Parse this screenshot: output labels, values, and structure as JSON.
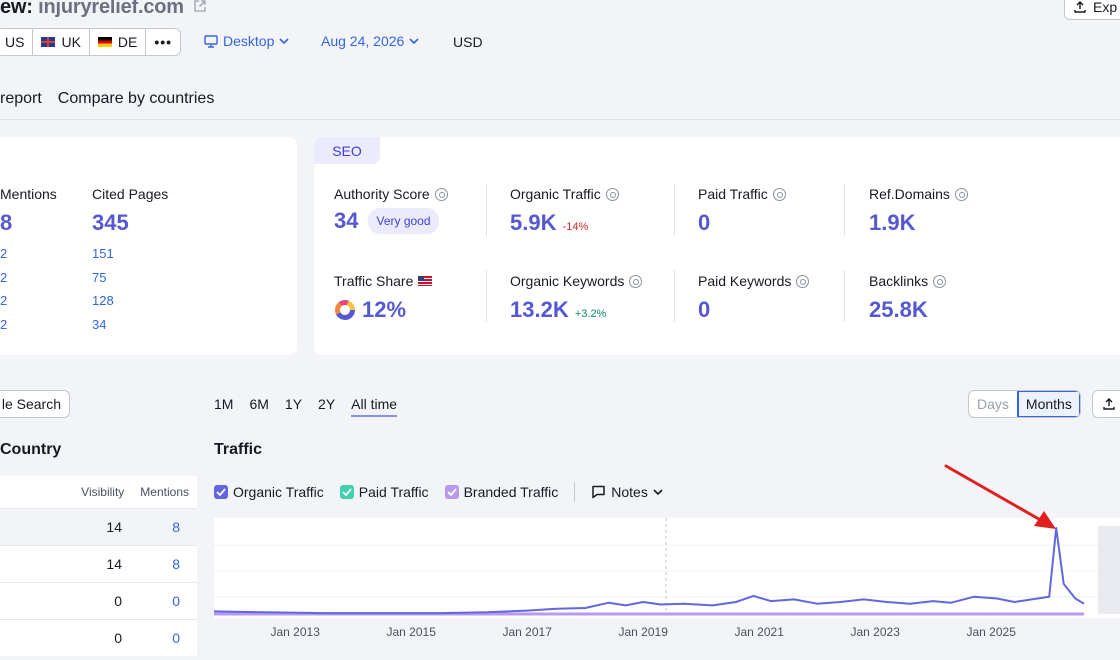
{
  "header": {
    "title_prefix": "ew:",
    "domain": "injuryrelief.com",
    "export_label": "Exp"
  },
  "filters": {
    "countries": [
      {
        "code": "US"
      },
      {
        "code": "UK"
      },
      {
        "code": "DE"
      }
    ],
    "more_label": "•••",
    "device": "Desktop",
    "date": "Aug 24, 2026",
    "currency": "USD"
  },
  "tabs": {
    "report": "report",
    "compare": "Compare by countries"
  },
  "ai_card": {
    "mentions_label": "Mentions",
    "mentions_value": "8",
    "cited_label": "Cited Pages",
    "cited_value": "345",
    "rows": [
      {
        "left": "2",
        "right": "151"
      },
      {
        "left": "2",
        "right": "75"
      },
      {
        "left": "2",
        "right": "128"
      },
      {
        "left": "2",
        "right": "34"
      }
    ]
  },
  "seo": {
    "tag": "SEO",
    "authority_label": "Authority Score",
    "authority_value": "34",
    "authority_badge": "Very good",
    "organic_traffic_label": "Organic Traffic",
    "organic_traffic_value": "5.9K",
    "organic_traffic_delta": "-14%",
    "paid_traffic_label": "Paid Traffic",
    "paid_traffic_value": "0",
    "ref_domains_label": "Ref.Domains",
    "ref_domains_value": "1.9K",
    "traffic_share_label": "Traffic Share",
    "traffic_share_value": "12%",
    "organic_keywords_label": "Organic Keywords",
    "organic_keywords_value": "13.2K",
    "organic_keywords_delta": "+3.2%",
    "paid_keywords_label": "Paid Keywords",
    "paid_keywords_value": "0",
    "backlinks_label": "Backlinks",
    "backlinks_value": "25.8K"
  },
  "left_panel": {
    "ai_search_label": "le Search",
    "country_title": "Country",
    "col_visibility": "Visibility",
    "col_mentions": "Mentions",
    "rows": [
      {
        "visibility": "14",
        "mentions": "8"
      },
      {
        "visibility": "14",
        "mentions": "8"
      },
      {
        "visibility": "0",
        "mentions": "0"
      },
      {
        "visibility": "0",
        "mentions": "0"
      }
    ]
  },
  "chart_controls": {
    "ranges": [
      "1M",
      "6M",
      "1Y",
      "2Y",
      "All time"
    ],
    "active_range": "All time",
    "days_label": "Days",
    "months_label": "Months",
    "traffic_title": "Traffic",
    "legend": {
      "organic": "Organic Traffic",
      "paid": "Paid Traffic",
      "branded": "Branded Traffic",
      "notes": "Notes"
    }
  },
  "colors": {
    "accent": "#5558d0",
    "organic": "#6366e0",
    "paid": "#3fd1b0",
    "branded": "#b59af0",
    "annotation_arrow": "#e02020"
  },
  "chart_data": {
    "type": "line",
    "x_tick_labels": [
      "Jan 2013",
      "Jan 2015",
      "Jan 2017",
      "Jan 2019",
      "Jan 2021",
      "Jan 2023",
      "Jan 2025"
    ],
    "x_range": [
      2011.6,
      2026.6
    ],
    "series": [
      {
        "name": "Organic Traffic",
        "points": [
          [
            2011.6,
            0.03
          ],
          [
            2012.5,
            0.02
          ],
          [
            2013.5,
            0.01
          ],
          [
            2014.5,
            0.01
          ],
          [
            2015.5,
            0.01
          ],
          [
            2016.3,
            0.02
          ],
          [
            2017.0,
            0.04
          ],
          [
            2017.5,
            0.06
          ],
          [
            2018.0,
            0.07
          ],
          [
            2018.4,
            0.13
          ],
          [
            2018.7,
            0.1
          ],
          [
            2019.0,
            0.14
          ],
          [
            2019.3,
            0.11
          ],
          [
            2019.7,
            0.12
          ],
          [
            2020.2,
            0.1
          ],
          [
            2020.6,
            0.14
          ],
          [
            2020.9,
            0.21
          ],
          [
            2021.2,
            0.15
          ],
          [
            2021.6,
            0.17
          ],
          [
            2022.0,
            0.12
          ],
          [
            2022.4,
            0.14
          ],
          [
            2022.8,
            0.17
          ],
          [
            2023.2,
            0.14
          ],
          [
            2023.6,
            0.12
          ],
          [
            2024.0,
            0.15
          ],
          [
            2024.3,
            0.13
          ],
          [
            2024.7,
            0.2
          ],
          [
            2025.1,
            0.18
          ],
          [
            2025.4,
            0.14
          ],
          [
            2025.7,
            0.17
          ],
          [
            2026.0,
            0.2
          ],
          [
            2026.12,
            1.0
          ],
          [
            2026.25,
            0.35
          ],
          [
            2026.45,
            0.18
          ],
          [
            2026.6,
            0.12
          ]
        ]
      },
      {
        "name": "Branded Traffic",
        "points": [
          [
            2011.6,
            0.0
          ],
          [
            2026.6,
            0.0
          ]
        ]
      }
    ]
  }
}
